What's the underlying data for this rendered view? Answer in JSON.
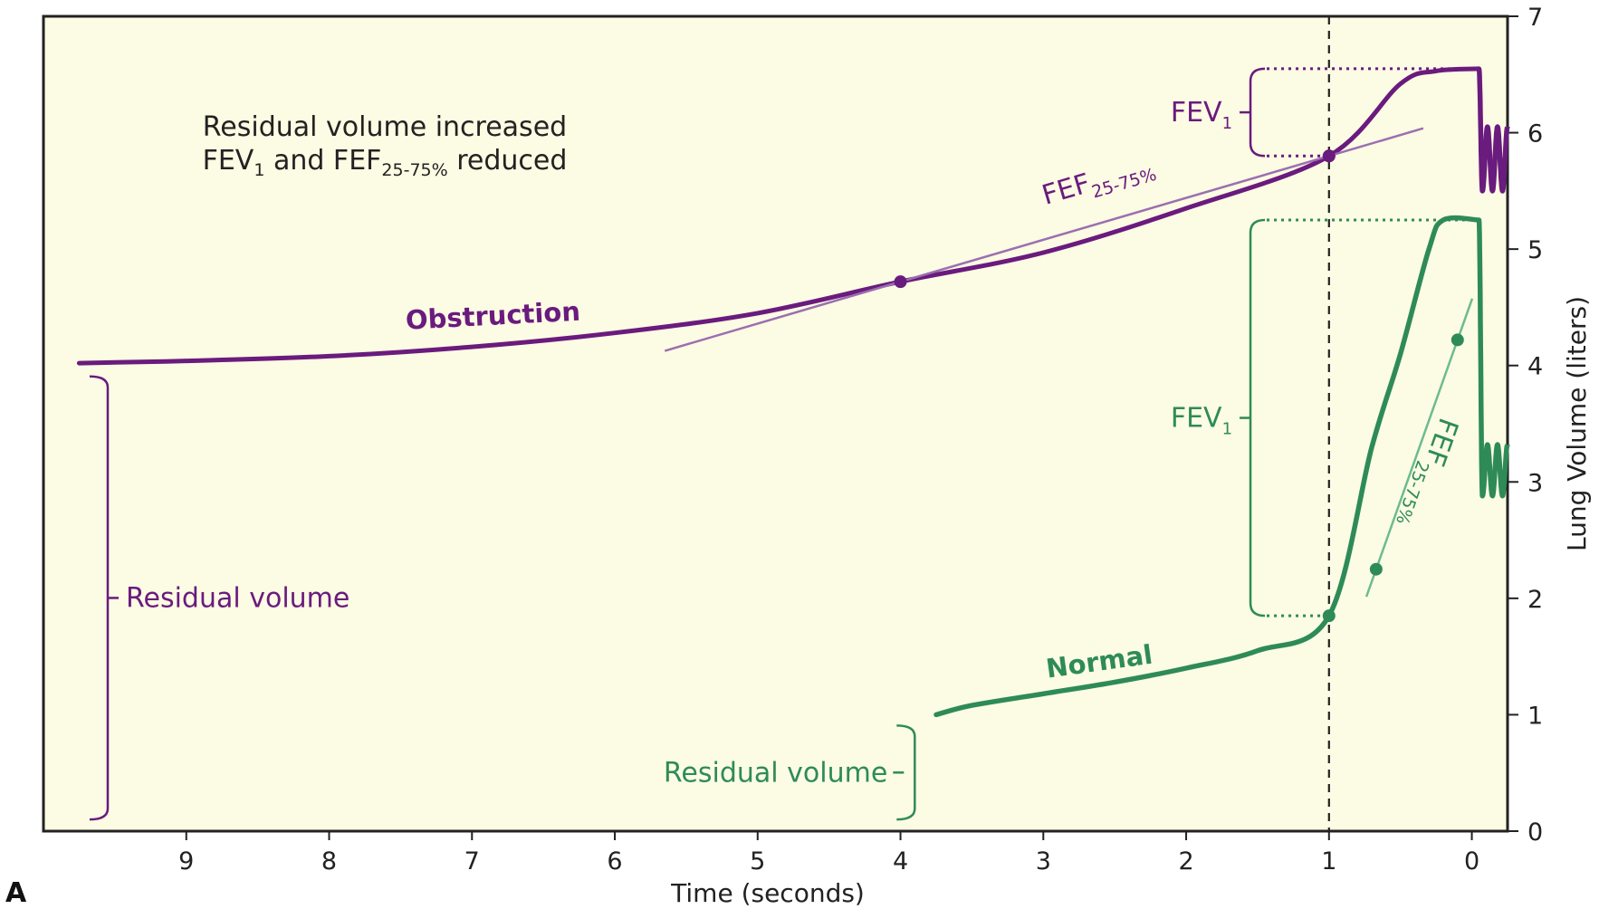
{
  "chart_data": {
    "type": "line",
    "panel_label": "A",
    "annotation": {
      "line1": "Residual volume increased",
      "line2_prefix": "FEV",
      "line2_sub1": "1",
      "line2_mid": " and FEF",
      "line2_sub2": "25-75%",
      "line2_suffix": " reduced"
    },
    "x_axis": {
      "label": "Time (seconds)",
      "reversed": true,
      "range": [
        10.0,
        -0.25
      ],
      "ticks": [
        9,
        8,
        7,
        6,
        5,
        4,
        3,
        2,
        1,
        0
      ],
      "tick_labels": [
        "9",
        "8",
        "7",
        "6",
        "5",
        "4",
        "3",
        "2",
        "1",
        "0"
      ]
    },
    "y_axis": {
      "label": "Lung Volume (liters)",
      "position": "right",
      "range": [
        0,
        7
      ],
      "ticks": [
        0,
        1,
        2,
        3,
        4,
        5,
        6,
        7
      ],
      "tick_labels": [
        "0",
        "1",
        "2",
        "3",
        "4",
        "5",
        "6",
        "7"
      ]
    },
    "reference_line": {
      "x": 1,
      "style": "dashed"
    },
    "series": [
      {
        "name": "Obstruction",
        "color": "#6a1b7e",
        "expiration": [
          [
            -0.05,
            6.55
          ],
          [
            0.25,
            6.53
          ],
          [
            0.5,
            6.42
          ],
          [
            1,
            5.8
          ],
          [
            2,
            5.35
          ],
          [
            3,
            4.97
          ],
          [
            4,
            4.72
          ],
          [
            5,
            4.45
          ],
          [
            6,
            4.28
          ],
          [
            7,
            4.16
          ],
          [
            8,
            4.08
          ],
          [
            9,
            4.04
          ],
          [
            9.75,
            4.02
          ]
        ],
        "fev1_point": [
          1,
          5.8
        ],
        "fef_points": [
          [
            4,
            4.72
          ],
          [
            1,
            5.8
          ]
        ],
        "fev1_bracket": {
          "from": 6.55,
          "to": 5.8,
          "label": "FEV",
          "sub": "1"
        },
        "fef_label": {
          "text": "FEF",
          "sub": "25-75%"
        },
        "residual_volume": {
          "from": 0.1,
          "to": 4.0,
          "label": "Residual volume"
        }
      },
      {
        "name": "Normal",
        "color": "#2e8b57",
        "expiration": [
          [
            -0.05,
            5.25
          ],
          [
            0.2,
            5.25
          ],
          [
            0.3,
            5.0
          ],
          [
            0.5,
            4.1
          ],
          [
            0.7,
            3.3
          ],
          [
            1,
            1.85
          ],
          [
            1.5,
            1.55
          ],
          [
            2,
            1.4
          ],
          [
            2.5,
            1.28
          ],
          [
            3,
            1.18
          ],
          [
            3.5,
            1.08
          ],
          [
            3.75,
            1.0
          ]
        ],
        "fev1_point": [
          1,
          1.85
        ],
        "fef_points": [
          [
            0.1,
            4.22
          ],
          [
            0.67,
            2.25
          ]
        ],
        "fev1_bracket": {
          "from": 5.25,
          "to": 1.85,
          "label": "FEV",
          "sub": "1"
        },
        "fef_label": {
          "text": "FEF",
          "sub": "25-75%"
        },
        "residual_volume": {
          "from": 0.1,
          "to": 1.0,
          "label": "Residual volume"
        }
      }
    ],
    "colors": {
      "background": "#fcfbe3",
      "obstruction": "#6a1b7e",
      "obstruction_light": "#9b6fb1",
      "normal": "#2e8b57",
      "normal_light": "#6dbb8f"
    }
  }
}
